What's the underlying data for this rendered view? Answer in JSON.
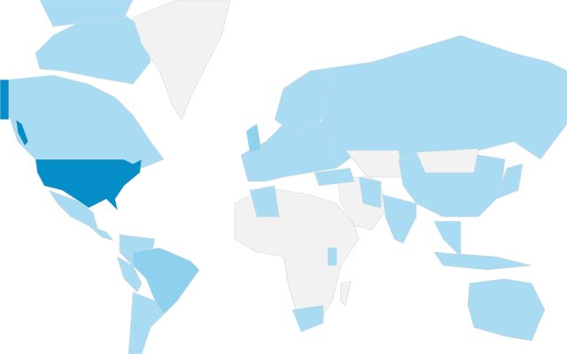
{
  "map": {
    "type": "choropleth-world",
    "colors": {
      "high": "#058dc7",
      "medium": "#8ed1ee",
      "low": "#a9dcf2",
      "none": "#f2f2f2",
      "ocean": "#ffffff"
    },
    "regions": [
      {
        "id": "usa",
        "level": "high"
      },
      {
        "id": "alaska",
        "level": "high"
      },
      {
        "id": "canada",
        "level": "low"
      },
      {
        "id": "greenland",
        "level": "none"
      },
      {
        "id": "mexico",
        "level": "low"
      },
      {
        "id": "central-america",
        "level": "low"
      },
      {
        "id": "northern-south-america",
        "level": "low"
      },
      {
        "id": "brazil",
        "level": "medium"
      },
      {
        "id": "peru",
        "level": "low"
      },
      {
        "id": "argentina-chile",
        "level": "low"
      },
      {
        "id": "europe",
        "level": "low"
      },
      {
        "id": "united-kingdom",
        "level": "medium"
      },
      {
        "id": "scandinavia",
        "level": "low"
      },
      {
        "id": "russia",
        "level": "low"
      },
      {
        "id": "africa",
        "level": "none"
      },
      {
        "id": "algeria",
        "level": "low"
      },
      {
        "id": "south-africa",
        "level": "low"
      },
      {
        "id": "kenya",
        "level": "low"
      },
      {
        "id": "middle-east",
        "level": "none"
      },
      {
        "id": "turkey",
        "level": "low"
      },
      {
        "id": "iran",
        "level": "low"
      },
      {
        "id": "kazakhstan",
        "level": "none"
      },
      {
        "id": "mongolia",
        "level": "none"
      },
      {
        "id": "china",
        "level": "low"
      },
      {
        "id": "india",
        "level": "low"
      },
      {
        "id": "japan",
        "level": "low"
      },
      {
        "id": "southeast-asia",
        "level": "low"
      },
      {
        "id": "indonesia",
        "level": "low"
      },
      {
        "id": "australia",
        "level": "low"
      },
      {
        "id": "madagascar",
        "level": "none"
      }
    ]
  }
}
